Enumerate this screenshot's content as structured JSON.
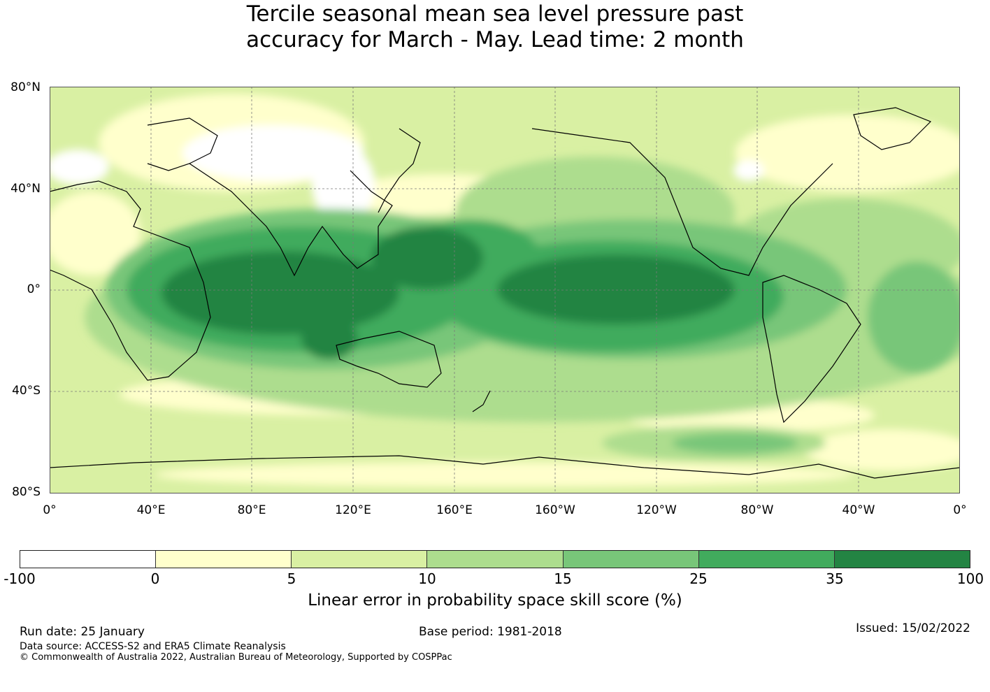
{
  "title": {
    "line1": "Tercile seasonal mean sea level pressure past",
    "line2": "accuracy for March - May. Lead time: 2 month"
  },
  "map": {
    "lat_labels": [
      "80°N",
      "40°N",
      "0°",
      "40°S",
      "80°S"
    ],
    "lon_labels": [
      "0°",
      "40°E",
      "80°E",
      "120°E",
      "160°E",
      "160°W",
      "120°W",
      "80°W",
      "40°W",
      "0°"
    ]
  },
  "colorbar": {
    "colors": [
      "#ffffff",
      "#ffffcc",
      "#d9f0a3",
      "#addd8e",
      "#78c679",
      "#41ab5d",
      "#238443"
    ],
    "ticks": [
      "-100",
      "0",
      "5",
      "10",
      "15",
      "25",
      "35",
      "100"
    ],
    "label": "Linear error in probability space skill score (%)"
  },
  "footer": {
    "run_date": "Run date: 25 January",
    "base_period": "Base period: 1981-2018",
    "issued": "Issued: 15/02/2022",
    "data_source": "Data source: ACCESS-S2 and ERA5 Climate Reanalysis",
    "copyright": "© Commonwealth of Australia 2022, Australian Bureau of Meteorology, Supported by COSPPac"
  }
}
